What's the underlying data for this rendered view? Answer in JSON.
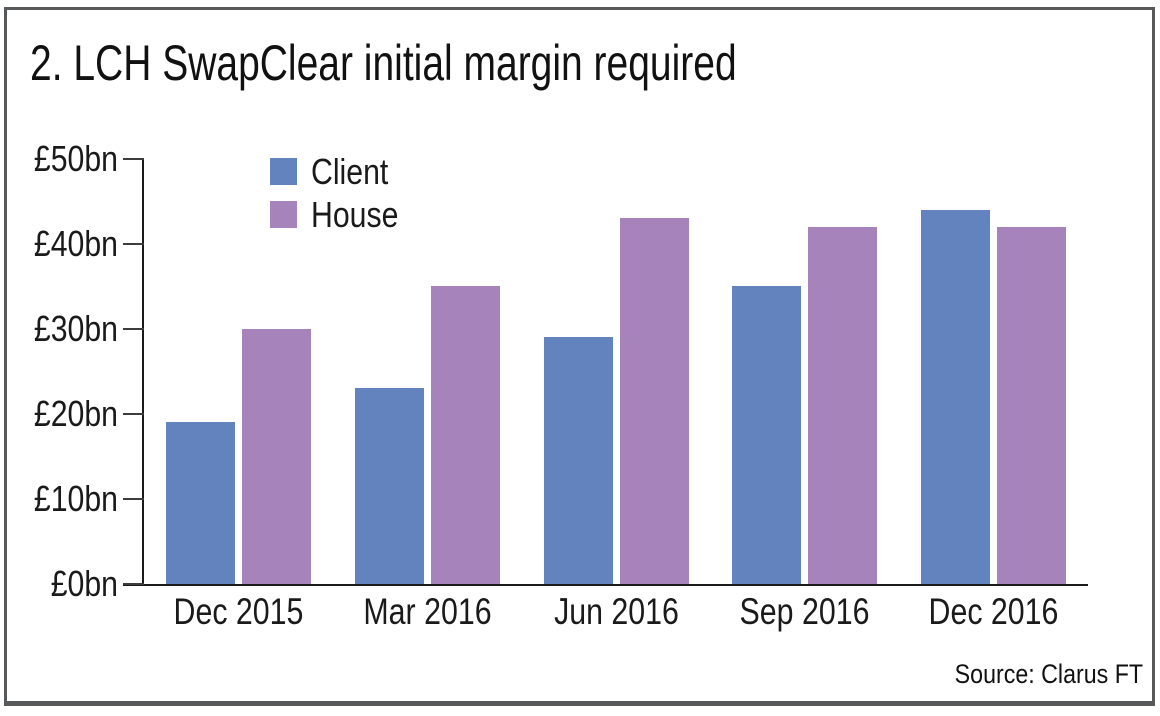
{
  "figure": {
    "title": "2. LCH SwapClear initial margin required",
    "source": "Source: Clarus FT"
  },
  "legend": [
    {
      "label": "Client",
      "color": "#6383BF"
    },
    {
      "label": "House",
      "color": "#A783BC"
    }
  ],
  "chart_data": {
    "type": "bar",
    "title": "2. LCH SwapClear initial margin required",
    "categories": [
      "Dec 2015",
      "Mar 2016",
      "Jun 2016",
      "Sep 2016",
      "Dec 2016"
    ],
    "series": [
      {
        "name": "Client",
        "color": "#6383BF",
        "values": [
          19,
          23,
          29,
          35,
          44
        ]
      },
      {
        "name": "House",
        "color": "#A783BC",
        "values": [
          30,
          35,
          43,
          42,
          42
        ]
      }
    ],
    "unit": "£bn",
    "ylim": [
      0,
      50
    ],
    "ytick_step": 10,
    "yticks": [
      "£0bn",
      "£10bn",
      "£20bn",
      "£30bn",
      "£40bn",
      "£50bn"
    ],
    "grid": false,
    "legend_position": "inside-top-left",
    "source": "Source: Clarus FT"
  }
}
